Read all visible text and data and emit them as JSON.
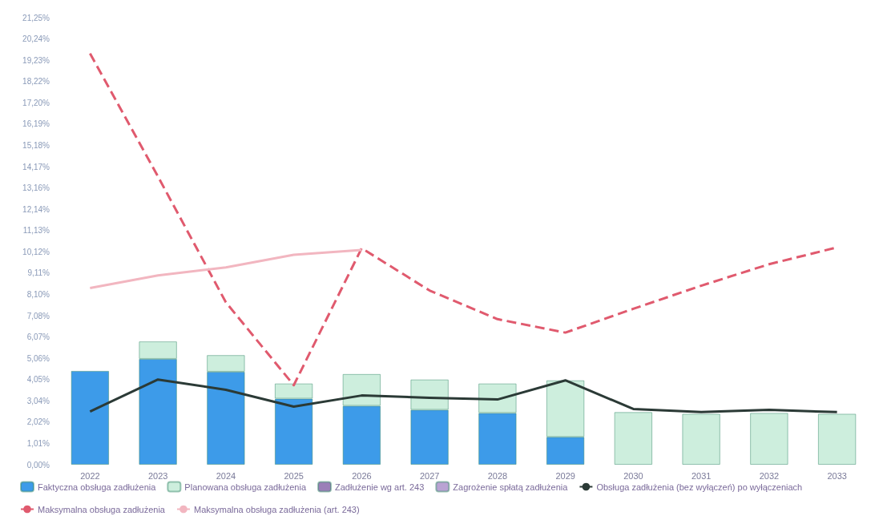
{
  "chart_data": {
    "type": "bar",
    "stacked": true,
    "grid": false,
    "legend": "bottom left",
    "categories": [
      "2022",
      "2023",
      "2024",
      "2025",
      "2026",
      "2027",
      "2028",
      "2029",
      "2030",
      "2031",
      "2032",
      "2033"
    ],
    "ylim": [
      0,
      21.252
    ],
    "yticks": [
      {
        "value": 0,
        "label": "0,00%"
      },
      {
        "value": 1.012,
        "label": "1,01%"
      },
      {
        "value": 2.024,
        "label": "2,02%"
      },
      {
        "value": 3.036,
        "label": "3,04%"
      },
      {
        "value": 4.048,
        "label": "4,05%"
      },
      {
        "value": 5.06,
        "label": "5,06%"
      },
      {
        "value": 6.072,
        "label": "6,07%"
      },
      {
        "value": 7.084,
        "label": "7,08%"
      },
      {
        "value": 8.096,
        "label": "8,10%"
      },
      {
        "value": 9.108,
        "label": "9,11%"
      },
      {
        "value": 10.12,
        "label": "10,12%"
      },
      {
        "value": 11.132,
        "label": "11,13%"
      },
      {
        "value": 12.144,
        "label": "12,14%"
      },
      {
        "value": 13.156,
        "label": "13,16%"
      },
      {
        "value": 14.168,
        "label": "14,17%"
      },
      {
        "value": 15.18,
        "label": "15,18%"
      },
      {
        "value": 16.192,
        "label": "16,19%"
      },
      {
        "value": 17.204,
        "label": "17,20%"
      },
      {
        "value": 18.216,
        "label": "18,22%"
      },
      {
        "value": 19.228,
        "label": "19,23%"
      },
      {
        "value": 20.24,
        "label": "20,24%"
      },
      {
        "value": 21.252,
        "label": "21,25%"
      }
    ],
    "series": [
      {
        "name": "Faktyczna obsługa zadłużenia",
        "color": "#3d9be9",
        "values": [
          4.46,
          5.03,
          4.42,
          3.14,
          2.8,
          2.61,
          2.46,
          1.32,
          null,
          null,
          null,
          null
        ]
      },
      {
        "name": "Planowana obsługa zadłużenia",
        "color": "#cdeedd",
        "values": [
          null,
          0.83,
          0.79,
          0.72,
          1.51,
          1.44,
          1.4,
          2.69,
          2.5,
          2.42,
          2.46,
          2.42
        ]
      },
      {
        "name": "Zadłużenie wg art. 243",
        "color": "#9b7fb8",
        "values": [
          null,
          null,
          null,
          null,
          null,
          null,
          null,
          null,
          null,
          null,
          null,
          null
        ]
      },
      {
        "name": "Zagrożenie spłatą zadłużenia",
        "color": "#b9a3d3",
        "values": [
          null,
          null,
          null,
          null,
          null,
          null,
          null,
          null,
          null,
          null,
          null,
          null
        ]
      },
      {
        "name": "Obsługa zadłużenia (bez wyłączeń) po wyłączeniach",
        "type": "line",
        "color": "#2b3a36",
        "values": [
          2.53,
          4.05,
          3.56,
          2.76,
          3.29,
          3.18,
          3.1,
          4.01,
          2.65,
          2.5,
          2.61,
          2.5
        ]
      },
      {
        "name": "Maksymalna obsługa zadłużenia",
        "type": "line",
        "line_style": "dashed",
        "color": "#e05a6e",
        "values": [
          19.55,
          13.7,
          7.72,
          3.78,
          10.29,
          8.28,
          6.92,
          6.28,
          7.41,
          8.51,
          9.53,
          10.33
        ]
      },
      {
        "name": "Maksymalna obsługa zadłużenia (art. 243)",
        "type": "line",
        "color": "#f2b6c0",
        "values": [
          8.4,
          9.0,
          9.38,
          9.98,
          10.21,
          null,
          null,
          null,
          null,
          null,
          null,
          null
        ]
      }
    ]
  }
}
